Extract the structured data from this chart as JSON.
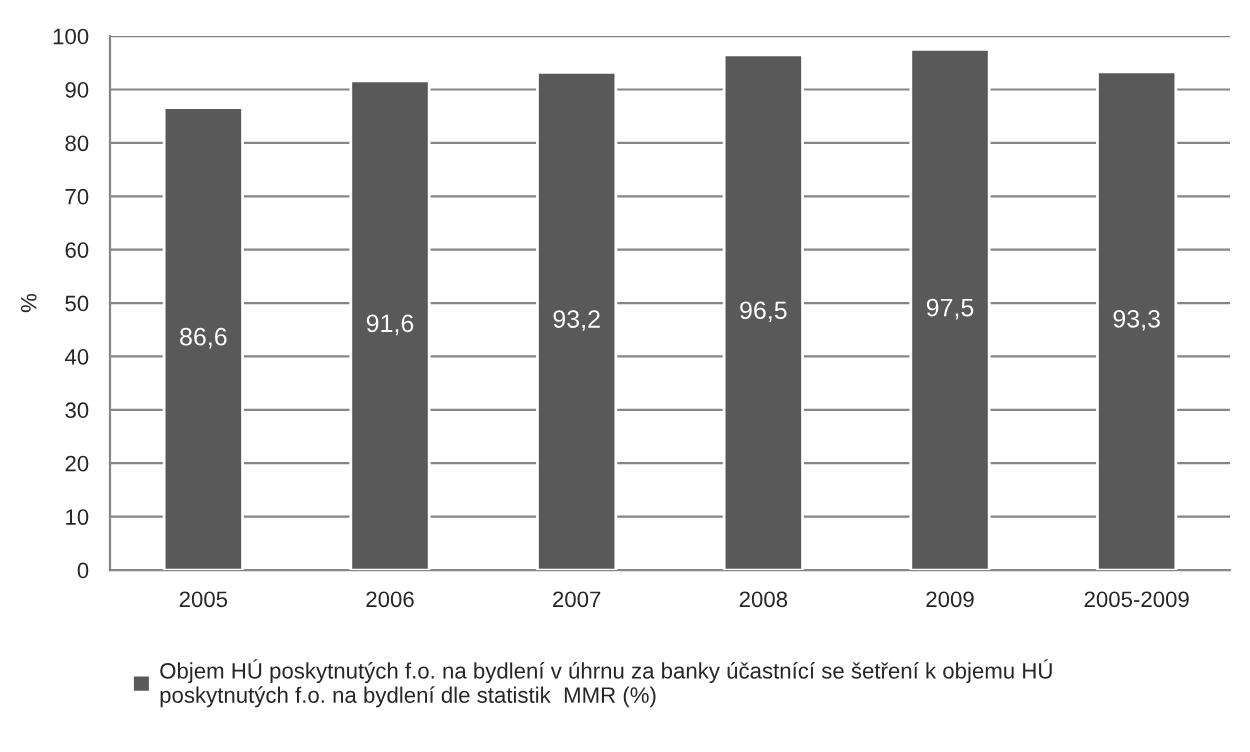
{
  "chart_data": {
    "type": "bar",
    "ylabel": "%",
    "categories": [
      "2005",
      "2006",
      "2007",
      "2008",
      "2009",
      "2005-2009"
    ],
    "series": [
      {
        "name": "Objem HÚ poskytnutých f.o. na bydlení v úhrnu za banky účastnící se šetření k objemu HÚ\nposkytnutých f.o. na bydlení dle statistik  MMR (%)",
        "color": "#595959",
        "values": [
          86.6,
          91.6,
          93.2,
          96.5,
          97.5,
          93.3
        ],
        "value_labels": [
          "86,6",
          "91,6",
          "93,2",
          "96,5",
          "97,5",
          "93,3"
        ]
      }
    ],
    "ylim": [
      0,
      100
    ],
    "yticks": [
      0,
      10,
      20,
      30,
      40,
      50,
      60,
      70,
      80,
      90,
      100
    ],
    "grid": "y",
    "legend": "bottom"
  }
}
